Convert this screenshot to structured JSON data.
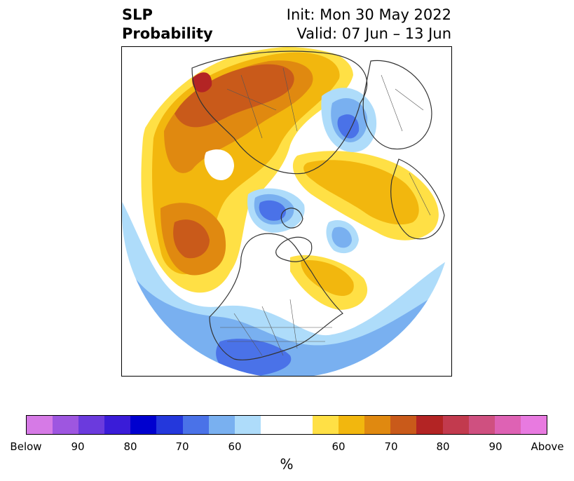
{
  "title": {
    "left_line1": "SLP",
    "left_line2": "Probability",
    "init": "Init: Mon 30 May 2022",
    "valid": "Valid: 07 Jun – 13 Jun"
  },
  "colorbar": {
    "colors": [
      "#d67ae6",
      "#9e56e0",
      "#6b3add",
      "#3a1cd8",
      "#0000cf",
      "#2438dc",
      "#4a72e8",
      "#79b0f0",
      "#aedcfa",
      "#ffffff",
      "#ffffff",
      "#ffe045",
      "#f2b70e",
      "#e08910",
      "#c95a1a",
      "#b32424",
      "#c23a4e",
      "#cf5080",
      "#de62b4",
      "#e87ae0"
    ],
    "tick_labels": [
      "Below",
      "90",
      "80",
      "70",
      "60",
      "60",
      "70",
      "80",
      "90",
      "Above"
    ],
    "unit": "%"
  },
  "legend_colors": {
    "below_light": "#aedcfa",
    "below_mid": "#79b0f0",
    "below_dark": "#4a72e8",
    "above_light": "#ffe045",
    "above_mid": "#f2b70e",
    "above_dark": "#e08910",
    "above_darker": "#c95a1a",
    "above_darkest": "#b32424"
  }
}
